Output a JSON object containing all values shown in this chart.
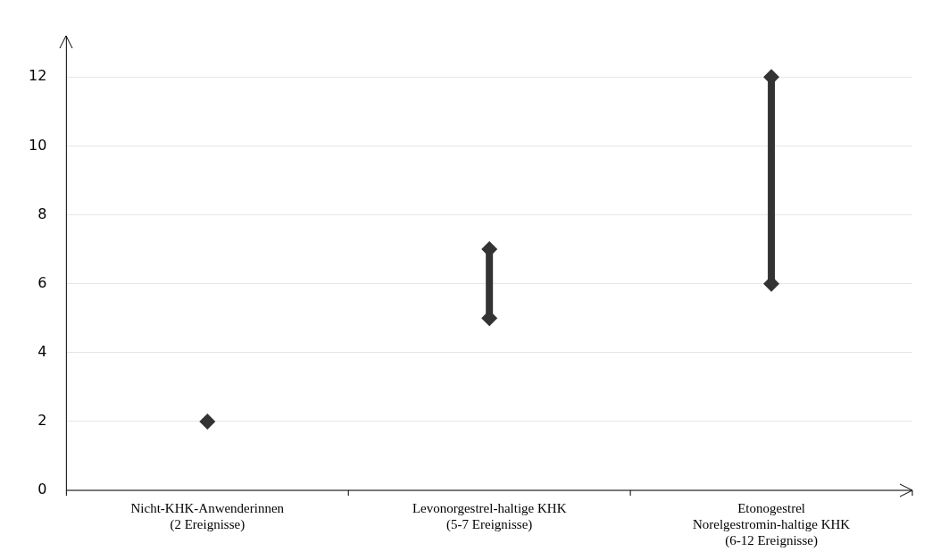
{
  "chart_data": {
    "type": "line",
    "categories": [
      "Nicht-KHK-Anwenderinnen\n(2 Ereignisse)",
      "Levonorgestrel-haltige KHK\n(5-7 Ereignisse)",
      "Etonogestrel\nNorelgestromin-haltige KHK\n(6-12 Ereignisse)"
    ],
    "series": [
      {
        "color": "#333333",
        "x": [
          "Nicht-KHK-Anwenderinnen\n(2 Ereignisse)"
        ],
        "values": [
          2
        ]
      },
      {
        "color": "#333333",
        "x": [
          "Levonorgestrel-haltige KHK\n(5-7 Ereignisse)",
          "Levonorgestrel-haltige KHK\n(5-7 Ereignisse)"
        ],
        "values": [
          5,
          7
        ]
      },
      {
        "color": "#333333",
        "x": [
          "Etonogestrel\nNorelgestromin-haltige KHK\n(6-12 Ereignisse)",
          "Etonogestrel\nNorelgestromin-haltige KHK\n(6-12 Ereignisse)"
        ],
        "values": [
          6,
          12
        ]
      }
    ],
    "ylim": [
      0,
      13.2
    ],
    "yticks": [
      0,
      2,
      4,
      6,
      8,
      10,
      12
    ],
    "grid": "y",
    "legend": false,
    "marker": "diamond"
  }
}
